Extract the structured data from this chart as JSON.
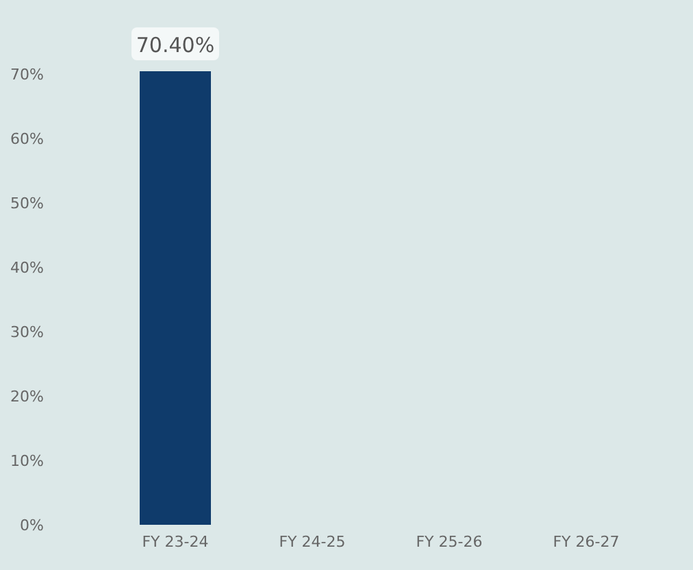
{
  "chart_data": {
    "type": "bar",
    "categories": [
      "FY 23-24",
      "FY 24-25",
      "FY 25-26",
      "FY 26-27"
    ],
    "values": [
      70.4,
      null,
      null,
      null
    ],
    "value_labels": [
      "70.40%",
      null,
      null,
      null
    ],
    "color": "#0f3b6b",
    "ylim": [
      0,
      70.4
    ],
    "yticks": [
      {
        "value": 0,
        "label": "0%"
      },
      {
        "value": 10,
        "label": "10%"
      },
      {
        "value": 20,
        "label": "20%"
      },
      {
        "value": 30,
        "label": "30%"
      },
      {
        "value": 40,
        "label": "40%"
      },
      {
        "value": 50,
        "label": "50%"
      },
      {
        "value": 60,
        "label": "60%"
      },
      {
        "value": 70,
        "label": "70%"
      }
    ],
    "grid": false,
    "legend": false
  }
}
